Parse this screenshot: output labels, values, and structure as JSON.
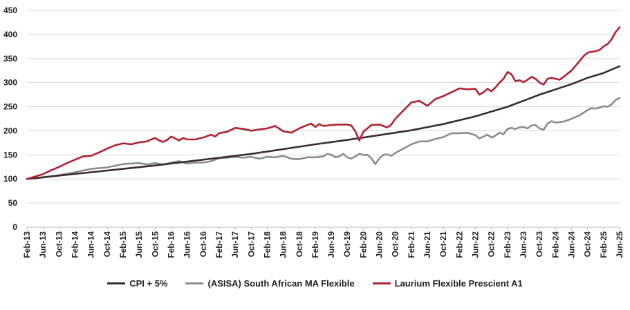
{
  "chart_data": {
    "type": "line",
    "title": "",
    "xlabel": "",
    "ylabel": "",
    "ylim": [
      0,
      450
    ],
    "yticks": [
      0,
      50,
      100,
      150,
      200,
      250,
      300,
      350,
      400,
      450
    ],
    "xlim": [
      0,
      148
    ],
    "xticks": [
      "Feb-13",
      "Jun-13",
      "Oct-13",
      "Feb-14",
      "Jun-14",
      "Oct-14",
      "Feb-15",
      "Jun-15",
      "Oct-15",
      "Feb-16",
      "Jun-16",
      "Oct-16",
      "Feb-17",
      "Jun-17",
      "Oct-17",
      "Feb-18",
      "Jun-18",
      "Oct-18",
      "Feb-19",
      "Jun-19",
      "Oct-19",
      "Feb-20",
      "Jun-20",
      "Oct-20",
      "Feb-21",
      "Jun-21",
      "Oct-21",
      "Feb-22",
      "Jun-22",
      "Oct-22",
      "Feb-23",
      "Jun-23",
      "Oct-23",
      "Feb-24",
      "Jun-24",
      "Oct-24",
      "Feb-25",
      "Jun-25"
    ],
    "grid": true,
    "legend_position": "bottom",
    "series": [
      {
        "name": "CPI + 5%",
        "color": "#3b2a33",
        "points": [
          [
            0,
            100
          ],
          [
            8,
            107
          ],
          [
            16,
            114
          ],
          [
            24,
            121
          ],
          [
            32,
            128
          ],
          [
            40,
            136
          ],
          [
            48,
            144
          ],
          [
            56,
            152
          ],
          [
            64,
            162
          ],
          [
            72,
            172
          ],
          [
            80,
            181
          ],
          [
            88,
            191
          ],
          [
            96,
            201
          ],
          [
            104,
            214
          ],
          [
            112,
            230
          ],
          [
            120,
            250
          ],
          [
            128,
            275
          ],
          [
            136,
            297
          ],
          [
            140,
            310
          ],
          [
            144,
            320
          ],
          [
            148,
            334
          ]
        ]
      },
      {
        "name": "(ASISA) South African MA Flexible",
        "color": "#8c8c8c",
        "points": [
          [
            0,
            100
          ],
          [
            4,
            103
          ],
          [
            8,
            108
          ],
          [
            12,
            114
          ],
          [
            16,
            121
          ],
          [
            20,
            124
          ],
          [
            24,
            131
          ],
          [
            28,
            133
          ],
          [
            30,
            130
          ],
          [
            32,
            133
          ],
          [
            34,
            130
          ],
          [
            36,
            134
          ],
          [
            38,
            137
          ],
          [
            40,
            132
          ],
          [
            42,
            134
          ],
          [
            44,
            134
          ],
          [
            46,
            137
          ],
          [
            48,
            143
          ],
          [
            50,
            144
          ],
          [
            52,
            146
          ],
          [
            54,
            144
          ],
          [
            56,
            146
          ],
          [
            58,
            142
          ],
          [
            60,
            146
          ],
          [
            62,
            145
          ],
          [
            64,
            148
          ],
          [
            66,
            142
          ],
          [
            68,
            141
          ],
          [
            70,
            145
          ],
          [
            72,
            145
          ],
          [
            74,
            147
          ],
          [
            75,
            152
          ],
          [
            76,
            150
          ],
          [
            77,
            145
          ],
          [
            78,
            147
          ],
          [
            79,
            152
          ],
          [
            80,
            145
          ],
          [
            81,
            142
          ],
          [
            82,
            147
          ],
          [
            83,
            152
          ],
          [
            84,
            150
          ],
          [
            85,
            150
          ],
          [
            86,
            143
          ],
          [
            87,
            131
          ],
          [
            88,
            143
          ],
          [
            89,
            150
          ],
          [
            90,
            151
          ],
          [
            91,
            148
          ],
          [
            92,
            154
          ],
          [
            94,
            163
          ],
          [
            96,
            172
          ],
          [
            98,
            178
          ],
          [
            100,
            178
          ],
          [
            102,
            183
          ],
          [
            104,
            187
          ],
          [
            106,
            195
          ],
          [
            108,
            195
          ],
          [
            110,
            196
          ],
          [
            112,
            191
          ],
          [
            113,
            184
          ],
          [
            114,
            188
          ],
          [
            115,
            192
          ],
          [
            116,
            186
          ],
          [
            117,
            190
          ],
          [
            118,
            196
          ],
          [
            119,
            193
          ],
          [
            120,
            204
          ],
          [
            121,
            206
          ],
          [
            122,
            204
          ],
          [
            123,
            207
          ],
          [
            124,
            208
          ],
          [
            125,
            205
          ],
          [
            126,
            211
          ],
          [
            127,
            212
          ],
          [
            128,
            205
          ],
          [
            129,
            202
          ],
          [
            130,
            215
          ],
          [
            131,
            220
          ],
          [
            132,
            217
          ],
          [
            134,
            219
          ],
          [
            136,
            225
          ],
          [
            138,
            232
          ],
          [
            140,
            243
          ],
          [
            141,
            247
          ],
          [
            142,
            246
          ],
          [
            143,
            248
          ],
          [
            144,
            251
          ],
          [
            145,
            250
          ],
          [
            146,
            255
          ],
          [
            147,
            264
          ],
          [
            148,
            268
          ]
        ]
      },
      {
        "name": "Laurium Flexible Prescient A1",
        "color": "#b0222f",
        "points": [
          [
            0,
            100
          ],
          [
            2,
            105
          ],
          [
            4,
            110
          ],
          [
            6,
            118
          ],
          [
            8,
            125
          ],
          [
            10,
            133
          ],
          [
            12,
            140
          ],
          [
            14,
            147
          ],
          [
            16,
            148
          ],
          [
            18,
            155
          ],
          [
            20,
            163
          ],
          [
            22,
            170
          ],
          [
            24,
            174
          ],
          [
            26,
            172
          ],
          [
            28,
            176
          ],
          [
            30,
            178
          ],
          [
            31,
            182
          ],
          [
            32,
            185
          ],
          [
            33,
            180
          ],
          [
            34,
            177
          ],
          [
            35,
            181
          ],
          [
            36,
            188
          ],
          [
            37,
            184
          ],
          [
            38,
            180
          ],
          [
            39,
            185
          ],
          [
            40,
            182
          ],
          [
            42,
            182
          ],
          [
            44,
            186
          ],
          [
            46,
            192
          ],
          [
            47,
            188
          ],
          [
            48,
            195
          ],
          [
            50,
            198
          ],
          [
            52,
            206
          ],
          [
            54,
            204
          ],
          [
            56,
            200
          ],
          [
            58,
            203
          ],
          [
            60,
            205
          ],
          [
            62,
            210
          ],
          [
            64,
            199
          ],
          [
            66,
            196
          ],
          [
            68,
            205
          ],
          [
            70,
            212
          ],
          [
            71,
            215
          ],
          [
            72,
            208
          ],
          [
            73,
            214
          ],
          [
            74,
            210
          ],
          [
            76,
            212
          ],
          [
            78,
            213
          ],
          [
            80,
            213
          ],
          [
            81,
            211
          ],
          [
            82,
            199
          ],
          [
            83,
            180
          ],
          [
            84,
            198
          ],
          [
            85,
            205
          ],
          [
            86,
            212
          ],
          [
            88,
            213
          ],
          [
            90,
            207
          ],
          [
            91,
            213
          ],
          [
            92,
            225
          ],
          [
            94,
            242
          ],
          [
            96,
            259
          ],
          [
            98,
            262
          ],
          [
            100,
            252
          ],
          [
            102,
            266
          ],
          [
            104,
            272
          ],
          [
            106,
            280
          ],
          [
            108,
            288
          ],
          [
            110,
            286
          ],
          [
            112,
            287
          ],
          [
            113,
            275
          ],
          [
            114,
            280
          ],
          [
            115,
            287
          ],
          [
            116,
            282
          ],
          [
            117,
            290
          ],
          [
            118,
            300
          ],
          [
            119,
            308
          ],
          [
            120,
            322
          ],
          [
            121,
            317
          ],
          [
            122,
            303
          ],
          [
            123,
            305
          ],
          [
            124,
            301
          ],
          [
            125,
            306
          ],
          [
            126,
            312
          ],
          [
            127,
            308
          ],
          [
            128,
            300
          ],
          [
            129,
            296
          ],
          [
            130,
            308
          ],
          [
            131,
            310
          ],
          [
            132,
            308
          ],
          [
            133,
            306
          ],
          [
            134,
            312
          ],
          [
            136,
            325
          ],
          [
            138,
            345
          ],
          [
            139,
            355
          ],
          [
            140,
            362
          ],
          [
            141,
            364
          ],
          [
            142,
            365
          ],
          [
            143,
            368
          ],
          [
            144,
            375
          ],
          [
            145,
            380
          ],
          [
            146,
            390
          ],
          [
            147,
            405
          ],
          [
            148,
            415
          ]
        ]
      }
    ]
  }
}
